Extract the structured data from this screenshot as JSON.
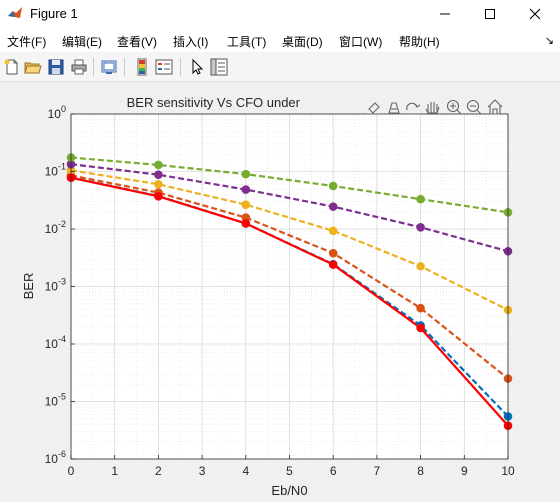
{
  "window": {
    "title": "Figure 1"
  },
  "menu": {
    "items": [
      {
        "id": "file",
        "label": "文件(F)"
      },
      {
        "id": "edit",
        "label": "编辑(E)"
      },
      {
        "id": "view",
        "label": "查看(V)"
      },
      {
        "id": "insert",
        "label": "插入(I)"
      },
      {
        "id": "tools",
        "label": "工具(T)"
      },
      {
        "id": "desktop",
        "label": "桌面(D)"
      },
      {
        "id": "window",
        "label": "窗口(W)"
      },
      {
        "id": "help",
        "label": "帮助(H)"
      }
    ],
    "overflow_arrow": "↘"
  },
  "toolbar": {
    "icons": [
      "new-figure-icon",
      "open-file-icon",
      "save-icon",
      "print-icon",
      "link-plot-icon",
      "colorbar-icon",
      "legend-icon",
      "pointer-icon",
      "property-inspector-icon"
    ]
  },
  "axes_toolbar": {
    "icons": [
      "brush-icon",
      "data-tips-icon",
      "rotate-icon",
      "pan-icon",
      "zoom-in-icon",
      "zoom-out-icon",
      "home-icon"
    ]
  },
  "chart_data": {
    "type": "line",
    "title": "BER sensitivity Vs CFO under",
    "xlabel": "Eb/N0",
    "ylabel": "BER",
    "xlim": [
      0,
      10
    ],
    "ylim": [
      1e-06,
      1
    ],
    "yscale": "log",
    "grid": true,
    "minor_grid": true,
    "x_ticks": [
      0,
      1,
      2,
      3,
      4,
      5,
      6,
      7,
      8,
      9,
      10
    ],
    "y_ticks": [
      {
        "value": 1e-06,
        "base": "10",
        "exp": "-6"
      },
      {
        "value": 1e-05,
        "base": "10",
        "exp": "-5"
      },
      {
        "value": 0.0001,
        "base": "10",
        "exp": "-4"
      },
      {
        "value": 0.001,
        "base": "10",
        "exp": "-3"
      },
      {
        "value": 0.01,
        "base": "10",
        "exp": "-2"
      },
      {
        "value": 0.1,
        "base": "10",
        "exp": "-1"
      },
      {
        "value": 1,
        "base": "10",
        "exp": "0"
      }
    ],
    "x": [
      0,
      2,
      4,
      6,
      8,
      10
    ],
    "series": [
      {
        "color": "#0072BD",
        "dash": "6,3",
        "values": [
          0.0785,
          0.0375,
          0.0125,
          0.00245,
          0.00021,
          5.5e-06
        ]
      },
      {
        "color": "#D95319",
        "dash": "6,3",
        "values": [
          0.0855,
          0.043,
          0.0158,
          0.0038,
          0.00042,
          2.5e-05
        ]
      },
      {
        "color": "#EDB120",
        "dash": "6,3",
        "values": [
          0.105,
          0.06,
          0.0265,
          0.0093,
          0.00225,
          0.00039
        ]
      },
      {
        "color": "#7E2F8E",
        "dash": "6,3",
        "values": [
          0.134,
          0.088,
          0.0485,
          0.0245,
          0.0107,
          0.0041
        ]
      },
      {
        "color": "#77AC30",
        "dash": "6,3",
        "values": [
          0.175,
          0.13,
          0.09,
          0.056,
          0.033,
          0.0195
        ]
      },
      {
        "color": "#FF0000",
        "dash": "",
        "values": [
          0.078,
          0.037,
          0.0125,
          0.0024,
          0.00019,
          3.8e-06
        ]
      }
    ]
  }
}
